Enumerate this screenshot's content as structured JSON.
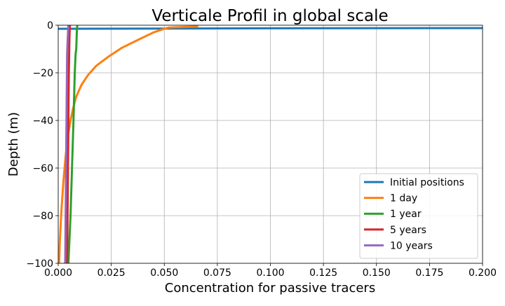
{
  "chart_data": {
    "type": "line",
    "title": "Verticale Profil in global scale",
    "xlabel": "Concentration for passive tracers",
    "ylabel": "Depth (m)",
    "xlim": [
      0.0,
      0.2
    ],
    "ylim": [
      -100,
      0
    ],
    "grid": true,
    "legend_position": "bottom-right",
    "x_ticks": [
      "0.000",
      "0.025",
      "0.050",
      "0.075",
      "0.100",
      "0.125",
      "0.150",
      "0.175",
      "0.200"
    ],
    "y_ticks": [
      "0",
      "−20",
      "−40",
      "−60",
      "−80",
      "−100"
    ],
    "series": [
      {
        "name": "Initial positions",
        "color": "#1f77b4",
        "points": [
          [
            0.0,
            -1.5
          ],
          [
            0.1,
            -1.3
          ],
          [
            0.2,
            -1.2
          ]
        ]
      },
      {
        "name": "1 day",
        "color": "#ff7f0e",
        "points": [
          [
            0.066,
            -0.5
          ],
          [
            0.06,
            -0.7
          ],
          [
            0.052,
            -1
          ],
          [
            0.05,
            -1.5
          ],
          [
            0.045,
            -3
          ],
          [
            0.038,
            -6
          ],
          [
            0.03,
            -9.5
          ],
          [
            0.024,
            -13
          ],
          [
            0.018,
            -17
          ],
          [
            0.014,
            -21
          ],
          [
            0.011,
            -25
          ],
          [
            0.0085,
            -30
          ],
          [
            0.007,
            -35
          ],
          [
            0.0058,
            -40
          ],
          [
            0.0045,
            -47
          ],
          [
            0.0035,
            -55
          ],
          [
            0.0025,
            -65
          ],
          [
            0.0015,
            -78
          ],
          [
            0.0008,
            -90
          ],
          [
            0.0004,
            -100
          ]
        ]
      },
      {
        "name": "1 year",
        "color": "#2ca02c",
        "points": [
          [
            0.009,
            0
          ],
          [
            0.0088,
            -2
          ],
          [
            0.0085,
            -10
          ],
          [
            0.0082,
            -12
          ],
          [
            0.0078,
            -20
          ],
          [
            0.0072,
            -40
          ],
          [
            0.0065,
            -60
          ],
          [
            0.0058,
            -80
          ],
          [
            0.0048,
            -100
          ]
        ]
      },
      {
        "name": "5 years",
        "color": "#d62728",
        "points": [
          [
            0.0055,
            0
          ],
          [
            0.0053,
            -5
          ],
          [
            0.0052,
            -10
          ],
          [
            0.005,
            -20
          ],
          [
            0.0048,
            -40
          ],
          [
            0.0046,
            -60
          ],
          [
            0.0044,
            -80
          ],
          [
            0.0042,
            -100
          ]
        ]
      },
      {
        "name": "10 years",
        "color": "#9467bd",
        "points": [
          [
            0.0048,
            0
          ],
          [
            0.0045,
            -5
          ],
          [
            0.0042,
            -12
          ],
          [
            0.004,
            -30
          ],
          [
            0.0038,
            -50
          ],
          [
            0.0036,
            -70
          ],
          [
            0.0034,
            -90
          ],
          [
            0.0033,
            -100
          ]
        ]
      }
    ]
  }
}
